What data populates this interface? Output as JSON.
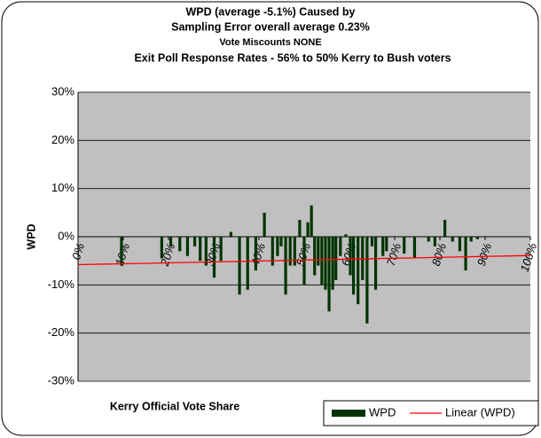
{
  "chart_data": {
    "type": "bar",
    "title": [
      "WPD (average -5.1%) Caused by",
      "Sampling Error overall average 0.23%",
      "Vote Miscounts NONE",
      "Exit Poll Response Rates - 56% to 50% Kerry to Bush voters"
    ],
    "x_label": "Kerry Official Vote Share",
    "y_label": "WPD",
    "xlim": [
      0,
      100
    ],
    "xticks": [
      {
        "value": 0,
        "label": "0%"
      },
      {
        "value": 10,
        "label": "10%"
      },
      {
        "value": 20,
        "label": "20%"
      },
      {
        "value": 30,
        "label": "30%"
      },
      {
        "value": 40,
        "label": "40%"
      },
      {
        "value": 50,
        "label": "50%"
      },
      {
        "value": 60,
        "label": "60%"
      },
      {
        "value": 70,
        "label": "70%"
      },
      {
        "value": 80,
        "label": "80%"
      },
      {
        "value": 90,
        "label": "90%"
      },
      {
        "value": 100,
        "label": "100%"
      }
    ],
    "ylim": [
      -30,
      30
    ],
    "yticks": [
      {
        "value": -30,
        "label": "-30%"
      },
      {
        "value": -20,
        "label": "-20%"
      },
      {
        "value": -10,
        "label": "-10%"
      },
      {
        "value": 0,
        "label": "0%"
      },
      {
        "value": 10,
        "label": "10%"
      },
      {
        "value": 20,
        "label": "20%"
      },
      {
        "value": 30,
        "label": "30%"
      }
    ],
    "grid": true,
    "legend": "bottom-right",
    "series": [
      {
        "name": "WPD",
        "color": "#003300",
        "x": [
          9.6,
          18.5,
          20.5,
          22.5,
          24.2,
          25.8,
          27,
          28.3,
          30.1,
          31.6,
          33.8,
          35.7,
          37.5,
          39.3,
          41.2,
          43,
          44.1,
          44.9,
          45.9,
          46.9,
          47.9,
          49,
          50,
          50.8,
          51.6,
          52.3,
          53.1,
          53.9,
          54.7,
          55.5,
          56.3,
          57,
          58,
          59.2,
          60.2,
          60.9,
          61.9,
          62.9,
          63.9,
          65,
          65.8,
          67.4,
          68.2,
          72.1,
          74.4,
          77.5,
          78.9,
          81.1,
          82.8,
          84.4,
          85.7,
          86.9,
          88.3
        ],
        "values": [
          -6,
          -4.5,
          -2,
          -3,
          -4,
          -2,
          -5,
          -6,
          -8.5,
          -5,
          1,
          -12,
          -11,
          -7,
          5,
          -6,
          -4,
          -2,
          -12,
          -6,
          -6,
          3.5,
          -10,
          3,
          6.5,
          -8,
          -6,
          -10,
          -11,
          -15.5,
          -11,
          -9,
          -4,
          0.5,
          -8,
          -12,
          -14,
          -9,
          -18,
          -2,
          -11,
          -4,
          -3,
          -3.5,
          -4.5,
          -1,
          -2,
          3.5,
          -1,
          -3,
          -7,
          -1,
          -0.5
        ]
      },
      {
        "name": "Linear (WPD)",
        "color": "#ff0000",
        "x": [
          0,
          100
        ],
        "values": [
          -5.8,
          -3.9
        ]
      }
    ]
  }
}
